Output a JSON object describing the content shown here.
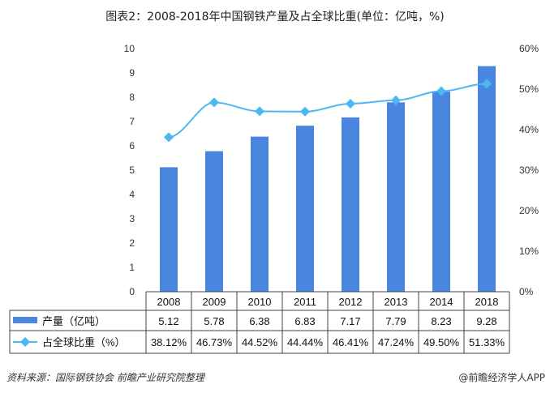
{
  "title": "图表2：2008-2018年中国钢铁产量及占全球比重(单位：亿吨，%)",
  "source": "资料来源：国际钢铁协会 前瞻产业研究院整理",
  "credit": "@前瞻经济学人APP",
  "chart_data": {
    "type": "bar+line",
    "categories": [
      "2008",
      "2009",
      "2010",
      "2011",
      "2012",
      "2013",
      "2014",
      "2018"
    ],
    "series": [
      {
        "name": "产量（亿吨）",
        "type": "bar",
        "axis": "left",
        "values": [
          5.12,
          5.78,
          6.38,
          6.83,
          7.17,
          7.79,
          8.23,
          9.28
        ],
        "labels": [
          "5.12",
          "5.78",
          "6.38",
          "6.83",
          "7.17",
          "7.79",
          "8.23",
          "9.28"
        ],
        "color": "#4a86e0"
      },
      {
        "name": "占全球比重（%）",
        "type": "line",
        "axis": "right",
        "values": [
          38.12,
          46.73,
          44.52,
          44.44,
          46.41,
          47.24,
          49.5,
          51.33
        ],
        "labels": [
          "38.12%",
          "46.73%",
          "44.52%",
          "44.44%",
          "46.41%",
          "47.24%",
          "49.50%",
          "51.33%"
        ],
        "color": "#4db8f0"
      }
    ],
    "ylim_left": [
      0,
      10
    ],
    "yticks_left": [
      "0",
      "1",
      "2",
      "3",
      "4",
      "5",
      "6",
      "7",
      "8",
      "9",
      "10"
    ],
    "ylim_right": [
      0,
      60
    ],
    "yticks_right": [
      "0%",
      "10%",
      "20%",
      "30%",
      "40%",
      "50%",
      "60%"
    ],
    "grid": false,
    "legend": "data-table-below"
  }
}
